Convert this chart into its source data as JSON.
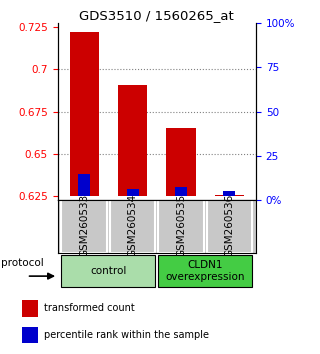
{
  "title": "GDS3510 / 1560265_at",
  "samples": [
    "GSM260533",
    "GSM260534",
    "GSM260535",
    "GSM260536"
  ],
  "red_values": [
    0.722,
    0.691,
    0.665,
    0.6255
  ],
  "blue_values": [
    0.638,
    0.629,
    0.63,
    0.628
  ],
  "baseline": 0.625,
  "ylim_left": [
    0.6225,
    0.7275
  ],
  "yticks_left": [
    0.625,
    0.65,
    0.675,
    0.7,
    0.725
  ],
  "ytick_labels_left": [
    "0.625",
    "0.65",
    "0.675",
    "0.7",
    "0.725"
  ],
  "yticks_right": [
    0,
    25,
    50,
    75,
    100
  ],
  "ytick_labels_right": [
    "0%",
    "25",
    "50",
    "75",
    "100%"
  ],
  "dotted_lines": [
    0.7,
    0.675,
    0.65
  ],
  "groups": [
    {
      "label": "control",
      "samples": [
        0,
        1
      ],
      "color": "#aaddaa"
    },
    {
      "label": "CLDN1\noverexpression",
      "samples": [
        2,
        3
      ],
      "color": "#44cc44"
    }
  ],
  "red_color": "#cc0000",
  "blue_color": "#0000cc",
  "bar_width": 0.6,
  "blue_bar_width": 0.25,
  "bg_color": "#c8c8c8",
  "legend_red": "transformed count",
  "legend_blue": "percentile rank within the sample",
  "protocol_label": "protocol"
}
